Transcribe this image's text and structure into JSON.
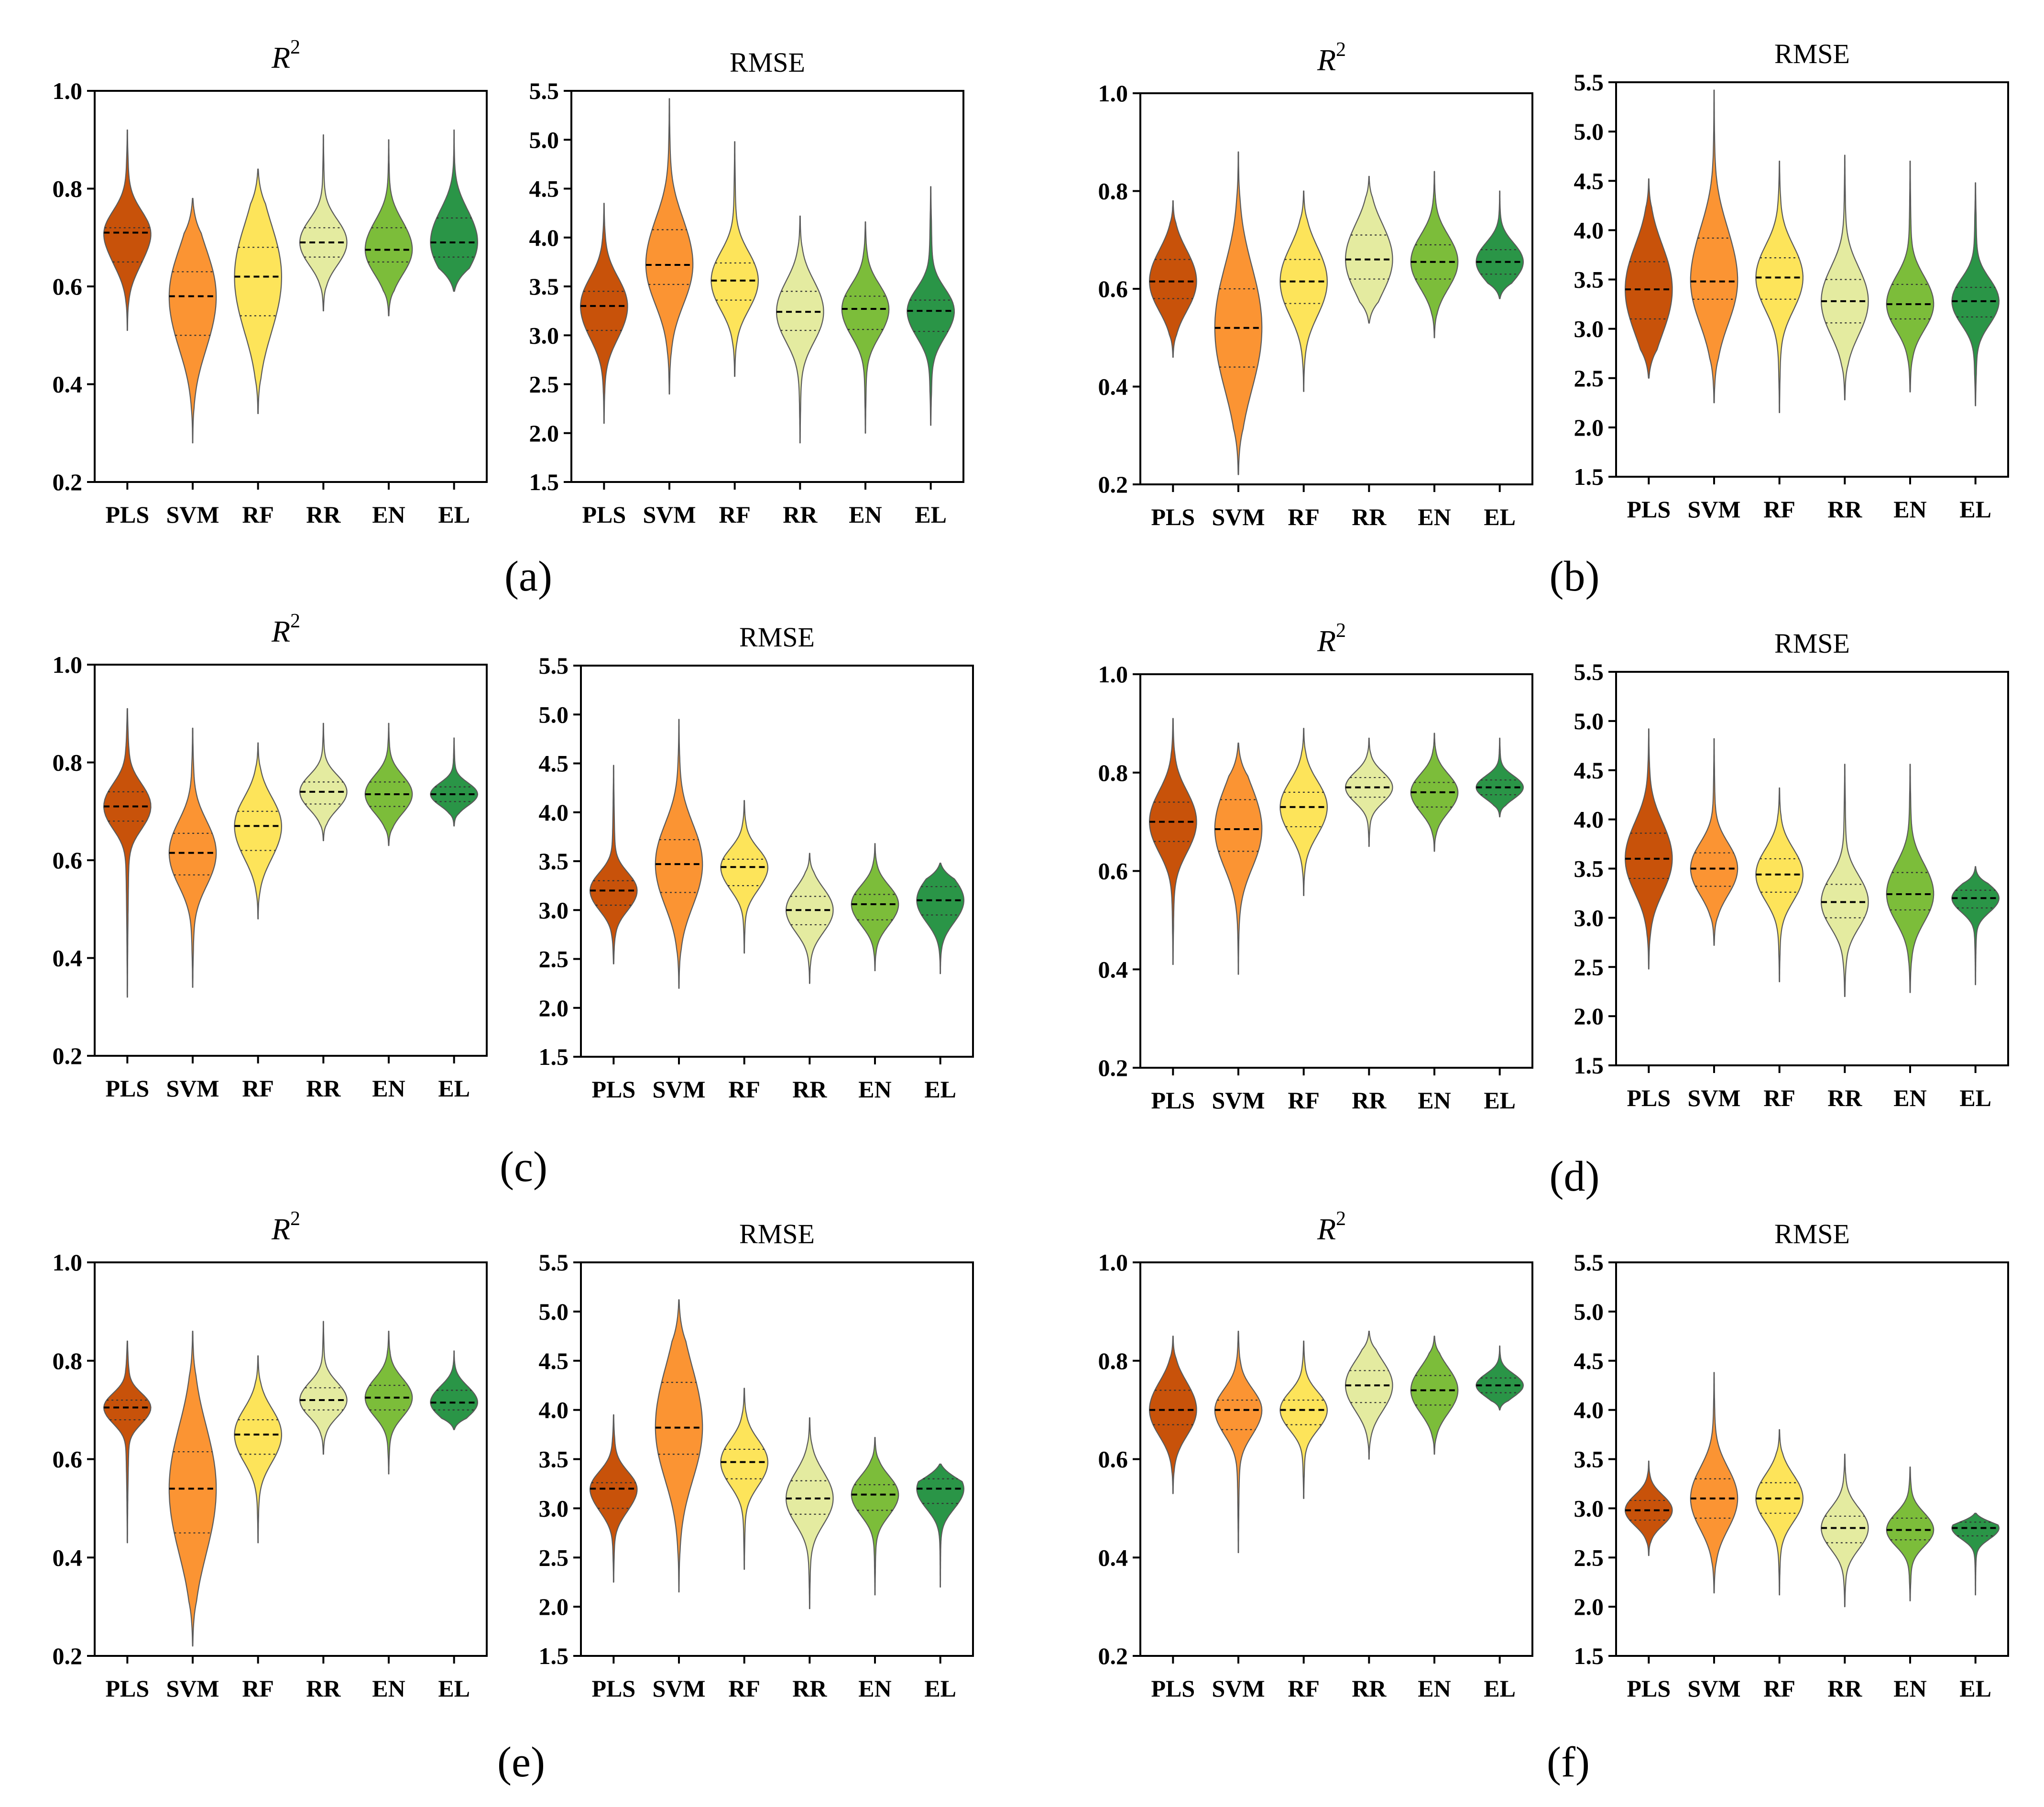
{
  "categories": [
    "PLS",
    "SVM",
    "RF",
    "RR",
    "EN",
    "EL"
  ],
  "colors": {
    "PLS": "#c8520a",
    "SVM": "#fb9433",
    "RF": "#fde45a",
    "RR": "#e4eba0",
    "EN": "#7cbd3a",
    "EL": "#2a9547",
    "outline": "#5a5a5a",
    "axis": "#000000"
  },
  "titles": {
    "r2_base": "R",
    "r2_sup": "2",
    "rmse": "RMSE"
  },
  "panels": [
    {
      "label": "(a)",
      "r2": [
        {
          "min": 0.51,
          "q1": 0.65,
          "median": 0.71,
          "q3": 0.72,
          "max": 0.92
        },
        {
          "min": 0.28,
          "q1": 0.5,
          "median": 0.58,
          "q3": 0.63,
          "max": 0.78
        },
        {
          "min": 0.34,
          "q1": 0.54,
          "median": 0.62,
          "q3": 0.68,
          "max": 0.84
        },
        {
          "min": 0.55,
          "q1": 0.66,
          "median": 0.69,
          "q3": 0.72,
          "max": 0.91
        },
        {
          "min": 0.54,
          "q1": 0.65,
          "median": 0.675,
          "q3": 0.72,
          "max": 0.9
        },
        {
          "min": 0.59,
          "q1": 0.66,
          "median": 0.69,
          "q3": 0.74,
          "max": 0.92
        }
      ],
      "rmse": [
        {
          "min": 2.1,
          "q1": 3.05,
          "median": 3.3,
          "q3": 3.45,
          "max": 4.35
        },
        {
          "min": 2.4,
          "q1": 3.52,
          "median": 3.72,
          "q3": 4.08,
          "max": 5.42
        },
        {
          "min": 2.58,
          "q1": 3.36,
          "median": 3.56,
          "q3": 3.74,
          "max": 4.98
        },
        {
          "min": 1.9,
          "q1": 3.05,
          "median": 3.24,
          "q3": 3.45,
          "max": 4.22
        },
        {
          "min": 2.0,
          "q1": 3.06,
          "median": 3.27,
          "q3": 3.4,
          "max": 4.16
        },
        {
          "min": 2.08,
          "q1": 3.04,
          "median": 3.25,
          "q3": 3.36,
          "max": 4.52
        }
      ]
    },
    {
      "label": "(b)",
      "r2": [
        {
          "min": 0.46,
          "q1": 0.58,
          "median": 0.615,
          "q3": 0.66,
          "max": 0.78
        },
        {
          "min": 0.22,
          "q1": 0.44,
          "median": 0.52,
          "q3": 0.6,
          "max": 0.88
        },
        {
          "min": 0.39,
          "q1": 0.57,
          "median": 0.615,
          "q3": 0.66,
          "max": 0.8
        },
        {
          "min": 0.53,
          "q1": 0.62,
          "median": 0.66,
          "q3": 0.71,
          "max": 0.83
        },
        {
          "min": 0.5,
          "q1": 0.62,
          "median": 0.655,
          "q3": 0.69,
          "max": 0.84
        },
        {
          "min": 0.58,
          "q1": 0.63,
          "median": 0.655,
          "q3": 0.68,
          "max": 0.8
        }
      ],
      "rmse": [
        {
          "min": 2.5,
          "q1": 3.1,
          "median": 3.4,
          "q3": 3.68,
          "max": 4.52
        },
        {
          "min": 2.25,
          "q1": 3.3,
          "median": 3.48,
          "q3": 3.92,
          "max": 5.42
        },
        {
          "min": 2.15,
          "q1": 3.3,
          "median": 3.52,
          "q3": 3.72,
          "max": 4.7
        },
        {
          "min": 2.28,
          "q1": 3.06,
          "median": 3.28,
          "q3": 3.5,
          "max": 4.76
        },
        {
          "min": 2.36,
          "q1": 3.1,
          "median": 3.25,
          "q3": 3.45,
          "max": 4.7
        },
        {
          "min": 2.22,
          "q1": 3.12,
          "median": 3.28,
          "q3": 3.42,
          "max": 4.48
        }
      ]
    },
    {
      "label": "(c)",
      "r2": [
        {
          "min": 0.32,
          "q1": 0.68,
          "median": 0.71,
          "q3": 0.74,
          "max": 0.91
        },
        {
          "min": 0.34,
          "q1": 0.57,
          "median": 0.615,
          "q3": 0.655,
          "max": 0.87
        },
        {
          "min": 0.48,
          "q1": 0.62,
          "median": 0.67,
          "q3": 0.7,
          "max": 0.84
        },
        {
          "min": 0.64,
          "q1": 0.715,
          "median": 0.74,
          "q3": 0.76,
          "max": 0.88
        },
        {
          "min": 0.63,
          "q1": 0.71,
          "median": 0.735,
          "q3": 0.76,
          "max": 0.88
        },
        {
          "min": 0.67,
          "q1": 0.72,
          "median": 0.735,
          "q3": 0.75,
          "max": 0.85
        }
      ],
      "rmse": [
        {
          "min": 2.45,
          "q1": 3.05,
          "median": 3.2,
          "q3": 3.3,
          "max": 4.48
        },
        {
          "min": 2.2,
          "q1": 3.18,
          "median": 3.47,
          "q3": 3.72,
          "max": 4.95
        },
        {
          "min": 2.56,
          "q1": 3.25,
          "median": 3.44,
          "q3": 3.52,
          "max": 4.12
        },
        {
          "min": 2.25,
          "q1": 2.85,
          "median": 3.0,
          "q3": 3.14,
          "max": 3.58
        },
        {
          "min": 2.38,
          "q1": 2.9,
          "median": 3.06,
          "q3": 3.16,
          "max": 3.68
        },
        {
          "min": 2.35,
          "q1": 2.95,
          "median": 3.1,
          "q3": 3.24,
          "max": 3.48
        }
      ]
    },
    {
      "label": "(d)",
      "r2": [
        {
          "min": 0.41,
          "q1": 0.66,
          "median": 0.7,
          "q3": 0.74,
          "max": 0.91
        },
        {
          "min": 0.39,
          "q1": 0.64,
          "median": 0.685,
          "q3": 0.745,
          "max": 0.86
        },
        {
          "min": 0.55,
          "q1": 0.69,
          "median": 0.73,
          "q3": 0.76,
          "max": 0.89
        },
        {
          "min": 0.65,
          "q1": 0.75,
          "median": 0.77,
          "q3": 0.79,
          "max": 0.87
        },
        {
          "min": 0.64,
          "q1": 0.73,
          "median": 0.76,
          "q3": 0.78,
          "max": 0.88
        },
        {
          "min": 0.71,
          "q1": 0.755,
          "median": 0.77,
          "q3": 0.785,
          "max": 0.87
        }
      ],
      "rmse": [
        {
          "min": 2.48,
          "q1": 3.4,
          "median": 3.6,
          "q3": 3.86,
          "max": 4.92
        },
        {
          "min": 2.72,
          "q1": 3.32,
          "median": 3.5,
          "q3": 3.66,
          "max": 4.82
        },
        {
          "min": 2.35,
          "q1": 3.26,
          "median": 3.44,
          "q3": 3.6,
          "max": 4.32
        },
        {
          "min": 2.2,
          "q1": 3.0,
          "median": 3.16,
          "q3": 3.34,
          "max": 4.56
        },
        {
          "min": 2.24,
          "q1": 3.08,
          "median": 3.24,
          "q3": 3.46,
          "max": 4.56
        },
        {
          "min": 2.32,
          "q1": 3.1,
          "median": 3.2,
          "q3": 3.28,
          "max": 3.52
        }
      ]
    },
    {
      "label": "(e)",
      "r2": [
        {
          "min": 0.43,
          "q1": 0.68,
          "median": 0.705,
          "q3": 0.72,
          "max": 0.84
        },
        {
          "min": 0.22,
          "q1": 0.45,
          "median": 0.54,
          "q3": 0.615,
          "max": 0.86
        },
        {
          "min": 0.43,
          "q1": 0.61,
          "median": 0.65,
          "q3": 0.68,
          "max": 0.81
        },
        {
          "min": 0.61,
          "q1": 0.7,
          "median": 0.72,
          "q3": 0.745,
          "max": 0.88
        },
        {
          "min": 0.57,
          "q1": 0.7,
          "median": 0.725,
          "q3": 0.75,
          "max": 0.86
        },
        {
          "min": 0.66,
          "q1": 0.7,
          "median": 0.715,
          "q3": 0.74,
          "max": 0.82
        }
      ],
      "rmse": [
        {
          "min": 2.25,
          "q1": 3.0,
          "median": 3.2,
          "q3": 3.26,
          "max": 3.95
        },
        {
          "min": 2.15,
          "q1": 3.55,
          "median": 3.82,
          "q3": 4.28,
          "max": 5.12
        },
        {
          "min": 2.38,
          "q1": 3.3,
          "median": 3.47,
          "q3": 3.6,
          "max": 4.22
        },
        {
          "min": 1.98,
          "q1": 2.94,
          "median": 3.1,
          "q3": 3.28,
          "max": 3.92
        },
        {
          "min": 2.12,
          "q1": 2.98,
          "median": 3.14,
          "q3": 3.24,
          "max": 3.72
        },
        {
          "min": 2.2,
          "q1": 3.05,
          "median": 3.2,
          "q3": 3.3,
          "max": 3.45
        }
      ]
    },
    {
      "label": "(f)",
      "r2": [
        {
          "min": 0.53,
          "q1": 0.67,
          "median": 0.7,
          "q3": 0.74,
          "max": 0.85
        },
        {
          "min": 0.41,
          "q1": 0.66,
          "median": 0.7,
          "q3": 0.72,
          "max": 0.86
        },
        {
          "min": 0.52,
          "q1": 0.67,
          "median": 0.7,
          "q3": 0.72,
          "max": 0.84
        },
        {
          "min": 0.6,
          "q1": 0.715,
          "median": 0.75,
          "q3": 0.78,
          "max": 0.86
        },
        {
          "min": 0.61,
          "q1": 0.71,
          "median": 0.74,
          "q3": 0.77,
          "max": 0.85
        },
        {
          "min": 0.7,
          "q1": 0.735,
          "median": 0.75,
          "q3": 0.765,
          "max": 0.83
        }
      ],
      "rmse": [
        {
          "min": 2.52,
          "q1": 2.88,
          "median": 2.98,
          "q3": 3.08,
          "max": 3.48
        },
        {
          "min": 2.14,
          "q1": 2.9,
          "median": 3.1,
          "q3": 3.3,
          "max": 4.38
        },
        {
          "min": 2.12,
          "q1": 2.95,
          "median": 3.1,
          "q3": 3.26,
          "max": 3.8
        },
        {
          "min": 2.0,
          "q1": 2.65,
          "median": 2.8,
          "q3": 2.92,
          "max": 3.55
        },
        {
          "min": 2.06,
          "q1": 2.68,
          "median": 2.78,
          "q3": 2.9,
          "max": 3.42
        },
        {
          "min": 2.12,
          "q1": 2.72,
          "median": 2.8,
          "q3": 2.86,
          "max": 2.95
        }
      ]
    }
  ],
  "chart_data": {
    "type": "violin",
    "description_axes": "Each panel (a)-(f) has two violin plots: R2 and RMSE, for six models",
    "categories": [
      "PLS",
      "SVM",
      "RF",
      "RR",
      "EN",
      "EL"
    ],
    "r2_axis": {
      "ylim": [
        0.2,
        1.0
      ],
      "ticks": [
        "0.2",
        "0.4",
        "0.6",
        "0.8",
        "1.0"
      ]
    },
    "rmse_axis": {
      "ylim": [
        1.5,
        5.5
      ],
      "ticks": [
        "1.5",
        "2.0",
        "2.5",
        "3.0",
        "3.5",
        "4.0",
        "4.5",
        "5.0",
        "5.5"
      ]
    },
    "panel_labels": [
      "(a)",
      "(b)",
      "(c)",
      "(d)",
      "(e)",
      "(f)"
    ]
  }
}
